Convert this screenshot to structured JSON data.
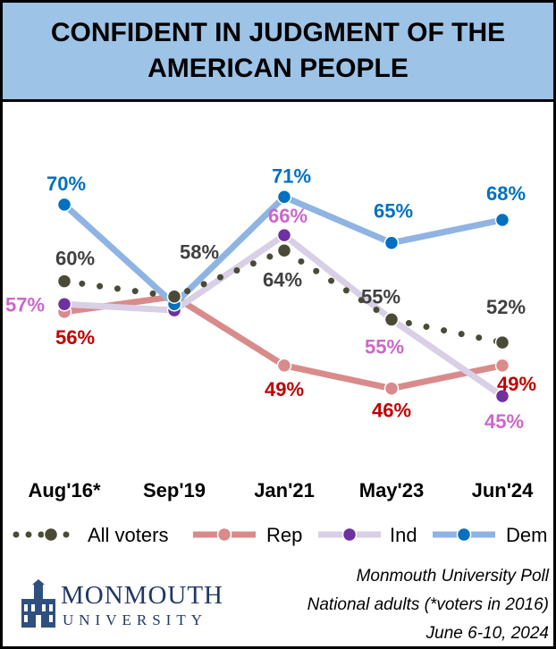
{
  "chart_data": {
    "type": "line",
    "title": "CONFIDENT IN JUDGMENT OF THE AMERICAN PEOPLE",
    "categories": [
      "Aug'16*",
      "Sep'19",
      "Jan'21",
      "May'23",
      "Jun'24"
    ],
    "ylim": [
      40,
      75
    ],
    "grid": false,
    "legend_placement": "bottom",
    "series": [
      {
        "name": "All voters",
        "color": "#4a4a36",
        "label_color": "#404040",
        "style": "dotted",
        "values": [
          60,
          58,
          64,
          55,
          52
        ],
        "labels": [
          "60%",
          "58%",
          "64%",
          "55%",
          "52%"
        ]
      },
      {
        "name": "Rep",
        "color": "#d98b8b",
        "label_color": "#c00000",
        "style": "solid",
        "values": [
          56,
          58,
          49,
          46,
          49
        ],
        "labels": [
          "56%",
          "",
          "49%",
          "46%",
          "49%"
        ]
      },
      {
        "name": "Ind",
        "color": "#d9cfe6",
        "marker_color": "#7030a0",
        "label_color": "#cc66cc",
        "style": "solid",
        "values": [
          57,
          56.2,
          66,
          55,
          45
        ],
        "labels": [
          "57%",
          "",
          "66%",
          "55%",
          "45%"
        ]
      },
      {
        "name": "Dem",
        "color": "#8fb4e3",
        "marker_color": "#0070c0",
        "label_color": "#0070c0",
        "style": "solid",
        "values": [
          70,
          57,
          71,
          65,
          68
        ],
        "labels": [
          "70%",
          "",
          "71%",
          "65%",
          "68%"
        ]
      }
    ]
  },
  "source": {
    "line1": "Monmouth University Poll",
    "line2": "National adults (*voters in 2016)",
    "line3": "June 6-10, 2024"
  },
  "logo": {
    "word": "MONMOUTH",
    "sub": "UNIVERSITY"
  }
}
